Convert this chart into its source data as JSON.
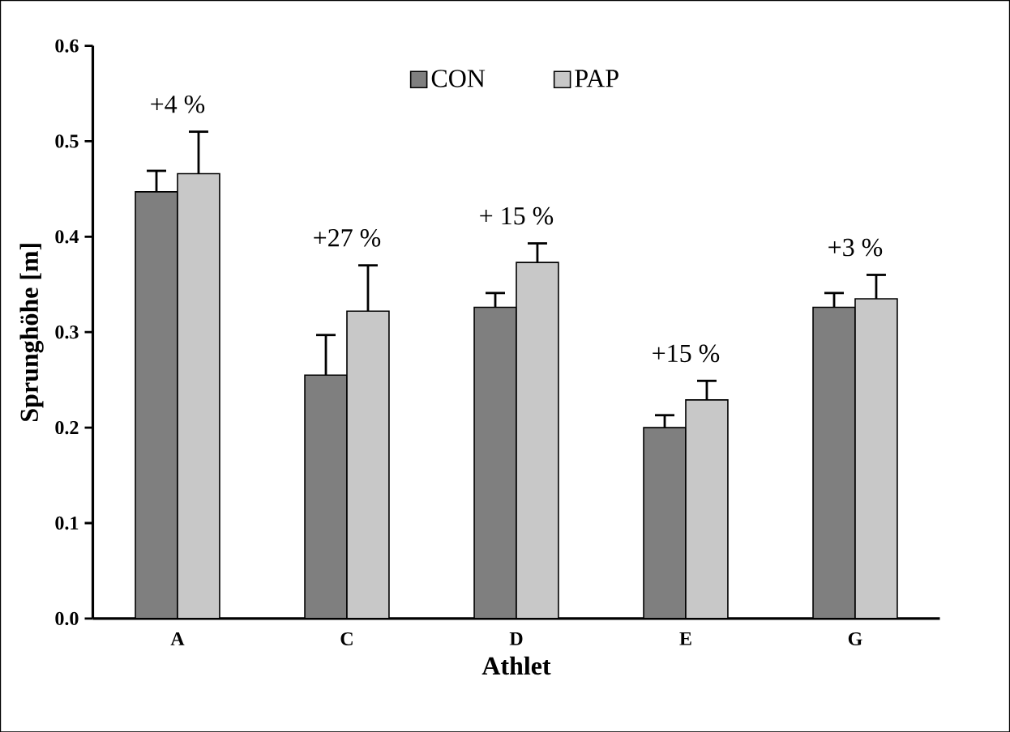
{
  "chart_data": {
    "type": "bar",
    "xlabel": "Athlet",
    "ylabel": "Sprunghöhe [m]",
    "categories": [
      "A",
      "C",
      "D",
      "E",
      "G"
    ],
    "series": [
      {
        "name": "CON",
        "color": "#7f7f7f",
        "values": [
          0.447,
          0.255,
          0.326,
          0.2,
          0.326
        ],
        "errors": [
          [
            0.447,
            0.469
          ],
          [
            0.255,
            0.297
          ],
          [
            0.326,
            0.341
          ],
          [
            0.2,
            0.213
          ],
          [
            0.326,
            0.341
          ]
        ]
      },
      {
        "name": "PAP",
        "color": "#c8c8c8",
        "values": [
          0.466,
          0.322,
          0.373,
          0.229,
          0.335
        ],
        "errors": [
          [
            0.466,
            0.51
          ],
          [
            0.322,
            0.37
          ],
          [
            0.373,
            0.393
          ],
          [
            0.229,
            0.249
          ],
          [
            0.335,
            0.36
          ]
        ]
      }
    ],
    "ylim": [
      0,
      0.6
    ],
    "yticks": [
      {
        "value": 0,
        "label": "0.0"
      },
      {
        "value": 0.1,
        "label": "0.1"
      },
      {
        "value": 0.2,
        "label": "0.2"
      },
      {
        "value": 0.3,
        "label": "0.3"
      },
      {
        "value": 0.4,
        "label": "0.4"
      },
      {
        "value": 0.5,
        "label": "0.5"
      },
      {
        "value": 0.6,
        "label": "0.6"
      }
    ],
    "annotations": [
      "+4 %",
      "+27 %",
      "+ 15 %",
      "+15 %",
      "+3 %"
    ],
    "legend": "top",
    "grid": false
  }
}
